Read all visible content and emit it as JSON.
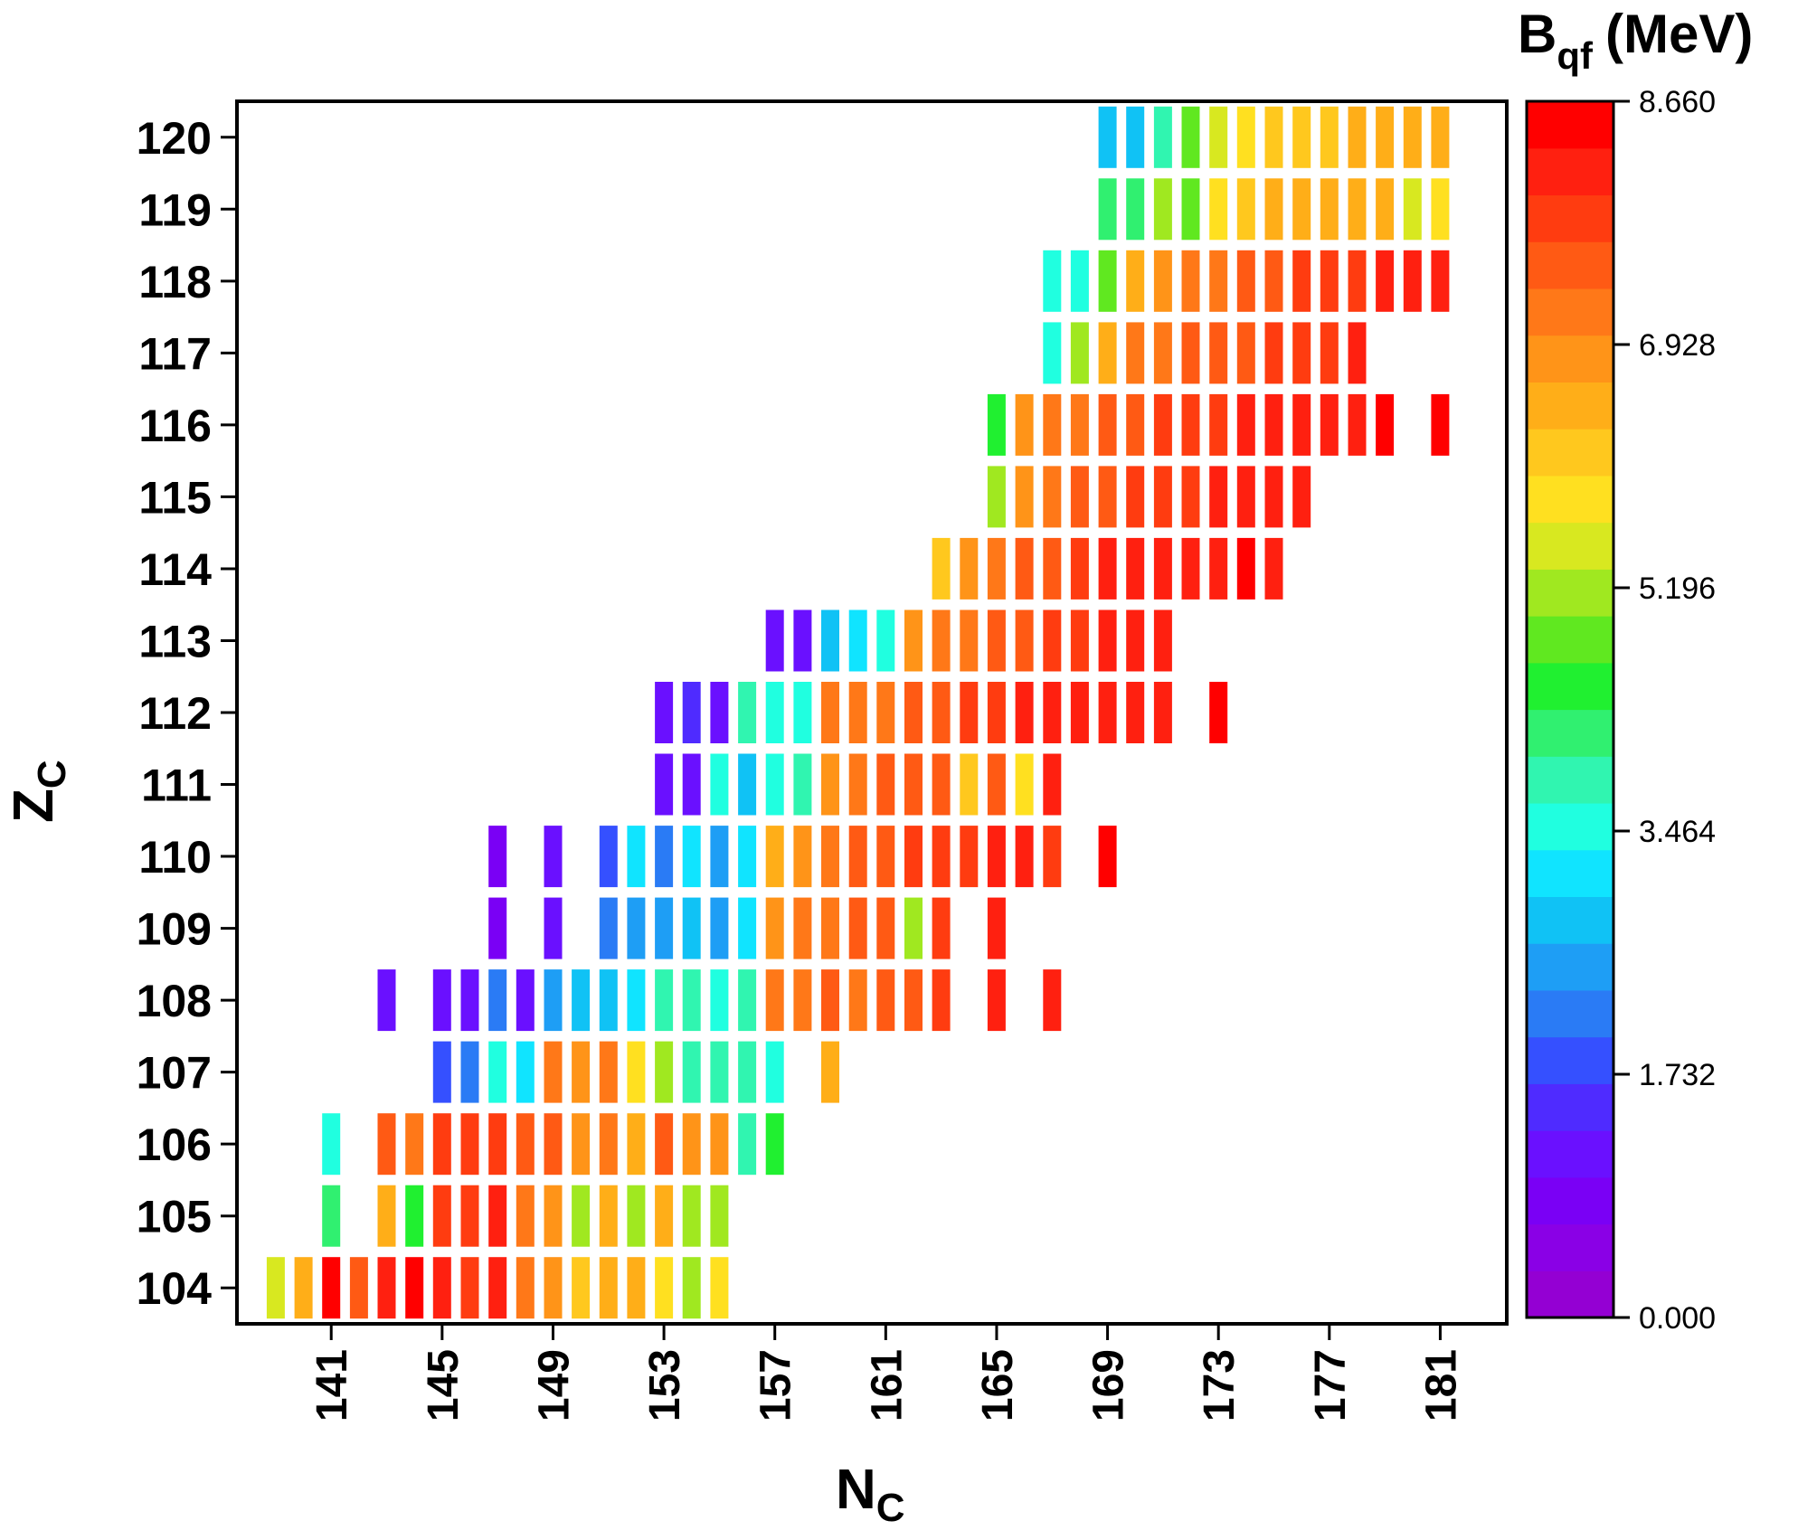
{
  "chart_data": {
    "type": "heatmap",
    "title": "",
    "xlabel_main": "N",
    "xlabel_sub": "C",
    "ylabel_main": "Z",
    "ylabel_sub": "C",
    "x_ticks": [
      "141",
      "145",
      "149",
      "153",
      "157",
      "161",
      "165",
      "169",
      "173",
      "177",
      "181"
    ],
    "y_ticks": [
      "104",
      "105",
      "106",
      "107",
      "108",
      "109",
      "110",
      "111",
      "112",
      "113",
      "114",
      "115",
      "116",
      "117",
      "118",
      "119",
      "120"
    ],
    "xlim": [
      137.6,
      183.4
    ],
    "ylim": [
      103.5,
      120.5
    ],
    "colorbar": {
      "title_main": "B",
      "title_sub": "qf",
      "title_unit": "(MeV)",
      "min": 0.0,
      "max": 8.66,
      "tick_labels": [
        "0.000",
        "1.732",
        "3.464",
        "5.196",
        "6.928",
        "8.660"
      ],
      "tick_values": [
        0.0,
        1.732,
        3.464,
        5.196,
        6.928,
        8.66
      ],
      "palette": [
        "#9400d3",
        "#8a00e6",
        "#7a00f5",
        "#6a10ff",
        "#4f2bff",
        "#3550ff",
        "#2a7bf5",
        "#1e9ef5",
        "#10c2f5",
        "#10e4ff",
        "#20ffe0",
        "#30f5b0",
        "#30f070",
        "#20f030",
        "#60e820",
        "#a0e820",
        "#d8e820",
        "#ffe020",
        "#ffc81e",
        "#ffae18",
        "#ff9418",
        "#ff7818",
        "#ff5a14",
        "#ff3c10",
        "#ff2010",
        "#ff0000"
      ]
    },
    "rows": [
      {
        "z": 104,
        "cells": [
          [
            139,
            5.4
          ],
          [
            140,
            6.6
          ],
          [
            141,
            8.4
          ],
          [
            142,
            7.4
          ],
          [
            143,
            8.3
          ],
          [
            144,
            8.4
          ],
          [
            145,
            8.3
          ],
          [
            146,
            7.9
          ],
          [
            147,
            8.3
          ],
          [
            148,
            7.3
          ],
          [
            149,
            6.8
          ],
          [
            150,
            6.2
          ],
          [
            151,
            6.6
          ],
          [
            152,
            6.6
          ],
          [
            153,
            5.9
          ],
          [
            154,
            5.2
          ],
          [
            155,
            5.8
          ]
        ]
      },
      {
        "z": 105,
        "cells": [
          [
            141,
            4.2
          ],
          [
            143,
            6.6
          ],
          [
            144,
            4.6
          ],
          [
            145,
            7.7
          ],
          [
            146,
            7.8
          ],
          [
            147,
            8.1
          ],
          [
            148,
            7.0
          ],
          [
            149,
            6.7
          ],
          [
            150,
            5.0
          ],
          [
            151,
            6.4
          ],
          [
            152,
            5.1
          ],
          [
            153,
            6.5
          ],
          [
            154,
            5.0
          ],
          [
            155,
            5.1
          ]
        ]
      },
      {
        "z": 106,
        "cells": [
          [
            141,
            3.6
          ],
          [
            143,
            7.6
          ],
          [
            144,
            7.1
          ],
          [
            145,
            7.7
          ],
          [
            146,
            7.8
          ],
          [
            147,
            7.9
          ],
          [
            148,
            7.5
          ],
          [
            149,
            7.4
          ],
          [
            150,
            6.7
          ],
          [
            151,
            7.3
          ],
          [
            152,
            6.6
          ],
          [
            153,
            7.6
          ],
          [
            154,
            6.7
          ],
          [
            155,
            6.9
          ],
          [
            156,
            3.9
          ],
          [
            157,
            4.5
          ]
        ]
      },
      {
        "z": 107,
        "cells": [
          [
            145,
            1.9
          ],
          [
            146,
            2.2
          ],
          [
            147,
            3.4
          ],
          [
            148,
            3.3
          ],
          [
            149,
            7.1
          ],
          [
            150,
            6.8
          ],
          [
            151,
            7.1
          ],
          [
            152,
            5.7
          ],
          [
            153,
            5.3
          ],
          [
            154,
            3.7
          ],
          [
            155,
            3.9
          ],
          [
            156,
            3.7
          ],
          [
            157,
            3.6
          ],
          [
            159,
            6.5
          ]
        ]
      },
      {
        "z": 108,
        "cells": [
          [
            143,
            1.0
          ],
          [
            145,
            1.2
          ],
          [
            146,
            1.1
          ],
          [
            147,
            2.3
          ],
          [
            148,
            1.0
          ],
          [
            149,
            2.6
          ],
          [
            150,
            2.8
          ],
          [
            151,
            2.7
          ],
          [
            152,
            3.3
          ],
          [
            153,
            3.8
          ],
          [
            154,
            3.7
          ],
          [
            155,
            3.5
          ],
          [
            156,
            3.8
          ],
          [
            157,
            7.0
          ],
          [
            158,
            7.0
          ],
          [
            159,
            7.4
          ],
          [
            160,
            7.2
          ],
          [
            161,
            7.4
          ],
          [
            162,
            7.5
          ],
          [
            163,
            7.7
          ],
          [
            165,
            8.0
          ],
          [
            167,
            8.3
          ]
        ]
      },
      {
        "z": 109,
        "cells": [
          [
            147,
            0.9
          ],
          [
            149,
            1.0
          ],
          [
            151,
            2.2
          ],
          [
            152,
            2.5
          ],
          [
            153,
            2.5
          ],
          [
            154,
            2.9
          ],
          [
            155,
            2.6
          ],
          [
            156,
            3.0
          ],
          [
            157,
            6.9
          ],
          [
            158,
            7.0
          ],
          [
            159,
            7.1
          ],
          [
            160,
            7.5
          ],
          [
            161,
            7.6
          ],
          [
            162,
            5.3
          ],
          [
            163,
            7.9
          ],
          [
            165,
            8.1
          ]
        ]
      },
      {
        "z": 110,
        "cells": [
          [
            147,
            0.9
          ],
          [
            149,
            1.0
          ],
          [
            151,
            1.8
          ],
          [
            152,
            3.2
          ],
          [
            153,
            2.3
          ],
          [
            154,
            3.0
          ],
          [
            155,
            2.5
          ],
          [
            156,
            3.0
          ],
          [
            157,
            6.5
          ],
          [
            158,
            6.9
          ],
          [
            159,
            7.3
          ],
          [
            160,
            7.5
          ],
          [
            161,
            7.6
          ],
          [
            162,
            7.7
          ],
          [
            163,
            7.9
          ],
          [
            164,
            7.8
          ],
          [
            165,
            8.1
          ],
          [
            166,
            8.0
          ],
          [
            167,
            7.8
          ],
          [
            169,
            8.4
          ]
        ]
      },
      {
        "z": 111,
        "cells": [
          [
            153,
            1.3
          ],
          [
            154,
            1.3
          ],
          [
            155,
            3.6
          ],
          [
            156,
            2.7
          ],
          [
            157,
            3.6
          ],
          [
            158,
            3.7
          ],
          [
            159,
            6.9
          ],
          [
            160,
            7.0
          ],
          [
            161,
            7.4
          ],
          [
            162,
            7.5
          ],
          [
            163,
            7.6
          ],
          [
            164,
            6.2
          ],
          [
            165,
            7.4
          ],
          [
            166,
            5.7
          ],
          [
            167,
            8.1
          ]
        ]
      },
      {
        "z": 112,
        "cells": [
          [
            153,
            1.3
          ],
          [
            154,
            1.4
          ],
          [
            155,
            1.1
          ],
          [
            156,
            3.9
          ],
          [
            157,
            3.6
          ],
          [
            158,
            3.6
          ],
          [
            159,
            7.0
          ],
          [
            160,
            7.1
          ],
          [
            161,
            7.3
          ],
          [
            162,
            7.5
          ],
          [
            163,
            7.6
          ],
          [
            164,
            7.7
          ],
          [
            165,
            7.8
          ],
          [
            166,
            8.0
          ],
          [
            167,
            8.1
          ],
          [
            168,
            8.2
          ],
          [
            169,
            8.3
          ],
          [
            170,
            8.3
          ],
          [
            171,
            8.3
          ],
          [
            173,
            8.4
          ]
        ]
      },
      {
        "z": 113,
        "cells": [
          [
            157,
            1.2
          ],
          [
            158,
            1.1
          ],
          [
            159,
            2.9
          ],
          [
            160,
            3.2
          ],
          [
            161,
            3.6
          ],
          [
            162,
            6.8
          ],
          [
            163,
            7.0
          ],
          [
            164,
            7.3
          ],
          [
            165,
            7.5
          ],
          [
            166,
            7.6
          ],
          [
            167,
            7.8
          ],
          [
            168,
            7.9
          ],
          [
            169,
            8.1
          ],
          [
            170,
            8.2
          ],
          [
            171,
            8.3
          ]
        ]
      },
      {
        "z": 114,
        "cells": [
          [
            163,
            6.3
          ],
          [
            164,
            6.8
          ],
          [
            165,
            7.2
          ],
          [
            166,
            7.5
          ],
          [
            167,
            7.6
          ],
          [
            168,
            7.8
          ],
          [
            169,
            8.0
          ],
          [
            170,
            8.1
          ],
          [
            171,
            8.2
          ],
          [
            172,
            8.3
          ],
          [
            173,
            8.3
          ],
          [
            174,
            8.4
          ],
          [
            175,
            8.3
          ]
        ]
      },
      {
        "z": 115,
        "cells": [
          [
            165,
            5.0
          ],
          [
            166,
            6.9
          ],
          [
            167,
            7.2
          ],
          [
            168,
            7.4
          ],
          [
            169,
            7.6
          ],
          [
            170,
            7.7
          ],
          [
            171,
            7.8
          ],
          [
            172,
            7.9
          ],
          [
            173,
            8.0
          ],
          [
            174,
            8.1
          ],
          [
            175,
            8.2
          ],
          [
            176,
            8.3
          ]
        ]
      },
      {
        "z": 116,
        "cells": [
          [
            165,
            4.6
          ],
          [
            166,
            6.8
          ],
          [
            167,
            7.1
          ],
          [
            168,
            7.3
          ],
          [
            169,
            7.5
          ],
          [
            170,
            7.6
          ],
          [
            171,
            7.7
          ],
          [
            172,
            7.8
          ],
          [
            173,
            7.9
          ],
          [
            174,
            8.0
          ],
          [
            175,
            8.1
          ],
          [
            176,
            8.2
          ],
          [
            177,
            8.3
          ],
          [
            178,
            8.3
          ],
          [
            179,
            8.4
          ],
          [
            181,
            8.5
          ]
        ]
      },
      {
        "z": 117,
        "cells": [
          [
            167,
            3.6
          ],
          [
            168,
            5.1
          ],
          [
            169,
            6.6
          ],
          [
            170,
            7.0
          ],
          [
            171,
            7.2
          ],
          [
            172,
            7.4
          ],
          [
            173,
            7.5
          ],
          [
            174,
            7.6
          ],
          [
            175,
            7.7
          ],
          [
            176,
            7.8
          ],
          [
            177,
            7.9
          ],
          [
            178,
            8.0
          ]
        ]
      },
      {
        "z": 118,
        "cells": [
          [
            167,
            3.6
          ],
          [
            168,
            3.6
          ],
          [
            169,
            4.8
          ],
          [
            170,
            6.4
          ],
          [
            171,
            6.9
          ],
          [
            172,
            7.1
          ],
          [
            173,
            7.3
          ],
          [
            174,
            7.5
          ],
          [
            175,
            7.6
          ],
          [
            176,
            7.7
          ],
          [
            177,
            7.8
          ],
          [
            178,
            7.9
          ],
          [
            179,
            8.0
          ],
          [
            180,
            8.1
          ],
          [
            181,
            8.2
          ]
        ]
      },
      {
        "z": 119,
        "cells": [
          [
            169,
            4.3
          ],
          [
            170,
            4.1
          ],
          [
            171,
            5.0
          ],
          [
            172,
            4.9
          ],
          [
            173,
            5.8
          ],
          [
            174,
            6.3
          ],
          [
            175,
            6.4
          ],
          [
            176,
            6.5
          ],
          [
            177,
            6.6
          ],
          [
            178,
            6.6
          ],
          [
            179,
            6.6
          ],
          [
            180,
            5.6
          ],
          [
            181,
            5.8
          ]
        ]
      },
      {
        "z": 120,
        "cells": [
          [
            169,
            2.8
          ],
          [
            170,
            2.9
          ],
          [
            171,
            3.8
          ],
          [
            172,
            4.7
          ],
          [
            173,
            5.5
          ],
          [
            174,
            5.9
          ],
          [
            175,
            6.0
          ],
          [
            176,
            6.2
          ],
          [
            177,
            6.3
          ],
          [
            178,
            6.4
          ],
          [
            179,
            6.6
          ],
          [
            180,
            6.5
          ],
          [
            181,
            6.6
          ]
        ]
      }
    ]
  }
}
